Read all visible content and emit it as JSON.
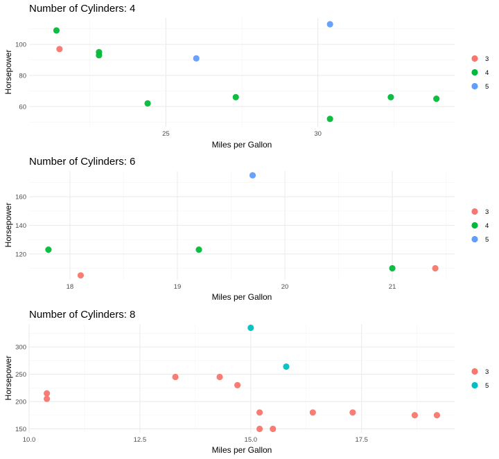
{
  "chart_data": [
    {
      "type": "scatter",
      "title": "Number of Cylinders: 4",
      "xlabel": "Miles per Gallon",
      "ylabel": "Horsepower",
      "xlim": [
        20.5,
        34.5
      ],
      "ylim": [
        47,
        117
      ],
      "xticks": [
        25,
        30
      ],
      "yticks": [
        60,
        80,
        100
      ],
      "grid": true,
      "legend": {
        "placement": "right",
        "entries": [
          "3",
          "4",
          "5"
        ]
      },
      "series": [
        {
          "name": "3",
          "color": "#F8766D",
          "points": [
            [
              21.5,
              97
            ]
          ]
        },
        {
          "name": "4",
          "color": "#00BA38",
          "points": [
            [
              21.4,
              109
            ],
            [
              22.8,
              95
            ],
            [
              22.8,
              93
            ],
            [
              24.4,
              62
            ],
            [
              27.3,
              66
            ],
            [
              30.4,
              52
            ],
            [
              32.4,
              66
            ],
            [
              33.9,
              65
            ]
          ]
        },
        {
          "name": "5",
          "color": "#619CFF",
          "points": [
            [
              26.0,
              91
            ],
            [
              30.4,
              113
            ]
          ]
        }
      ]
    },
    {
      "type": "scatter",
      "title": "Number of Cylinders: 6",
      "xlabel": "Miles per Gallon",
      "ylabel": "Horsepower",
      "xlim": [
        17.62,
        21.58
      ],
      "ylim": [
        102,
        178
      ],
      "xticks": [
        18,
        19,
        20,
        21
      ],
      "yticks": [
        120,
        140,
        160
      ],
      "grid": true,
      "legend": {
        "placement": "right",
        "entries": [
          "3",
          "4",
          "5"
        ]
      },
      "series": [
        {
          "name": "3",
          "color": "#F8766D",
          "points": [
            [
              18.1,
              105
            ],
            [
              21.4,
              110
            ]
          ]
        },
        {
          "name": "4",
          "color": "#00BA38",
          "points": [
            [
              17.8,
              123
            ],
            [
              19.2,
              123
            ],
            [
              21.0,
              110
            ]
          ]
        },
        {
          "name": "5",
          "color": "#619CFF",
          "points": [
            [
              19.7,
              175
            ]
          ]
        }
      ]
    },
    {
      "type": "scatter",
      "title": "Number of Cylinders: 8",
      "xlabel": "Miles per Gallon",
      "ylabel": "Horsepower",
      "xlim": [
        10.0,
        19.6
      ],
      "ylim": [
        143,
        342
      ],
      "xticks": [
        10.0,
        12.5,
        15.0,
        17.5
      ],
      "yticks": [
        150,
        200,
        250,
        300
      ],
      "grid": true,
      "legend": {
        "placement": "right",
        "entries": [
          "3",
          "5"
        ]
      },
      "series": [
        {
          "name": "3",
          "color": "#F8766D",
          "points": [
            [
              10.4,
              215
            ],
            [
              10.4,
              205
            ],
            [
              13.3,
              245
            ],
            [
              14.3,
              245
            ],
            [
              14.7,
              230
            ],
            [
              15.2,
              180
            ],
            [
              15.2,
              150
            ],
            [
              15.5,
              150
            ],
            [
              16.4,
              180
            ],
            [
              17.3,
              180
            ],
            [
              18.7,
              175
            ],
            [
              19.2,
              175
            ]
          ]
        },
        {
          "name": "5",
          "color": "#00BFC4",
          "points": [
            [
              15.0,
              335
            ],
            [
              15.8,
              264
            ]
          ]
        }
      ]
    }
  ]
}
